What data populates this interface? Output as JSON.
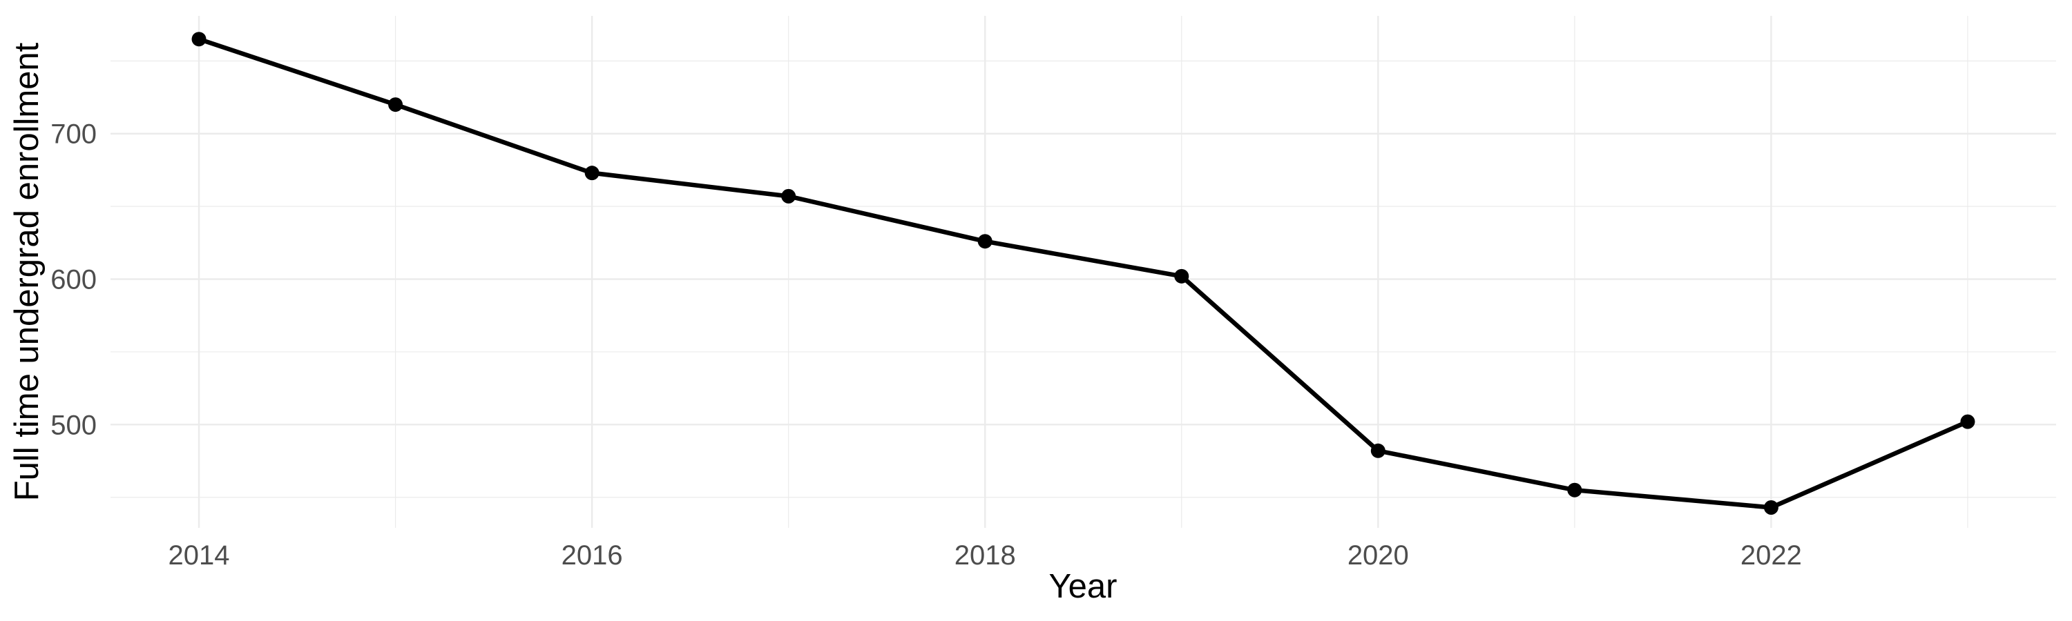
{
  "chart_data": {
    "type": "line",
    "title": "",
    "xlabel": "Year",
    "ylabel": "Full time undergrad enrollment",
    "x": [
      2014,
      2015,
      2016,
      2017,
      2018,
      2019,
      2020,
      2021,
      2022,
      2023
    ],
    "values": [
      765,
      720,
      673,
      657,
      626,
      602,
      482,
      455,
      443,
      502
    ],
    "series_name": "Full time undergrad enrollment",
    "x_major_ticks": [
      2014,
      2016,
      2018,
      2020,
      2022
    ],
    "x_tick_labels": [
      "2014",
      "2016",
      "2018",
      "2020",
      "2022"
    ],
    "x_minor_gridlines": [
      2015,
      2017,
      2019,
      2021,
      2023
    ],
    "y_major_ticks": [
      500,
      600,
      700
    ],
    "y_tick_labels": [
      "500",
      "600",
      "700"
    ],
    "y_minor_gridlines": [
      450,
      550,
      650,
      750
    ],
    "xlim": [
      2013.55,
      2023.45
    ],
    "ylim": [
      429,
      781
    ],
    "grid": "on",
    "legend": "none",
    "colors": {
      "background": "#ffffff",
      "gridline": "#ebebeb",
      "axis_text": "#4d4d4d",
      "axis_title": "#000000",
      "line": "#000000",
      "point": "#000000"
    }
  }
}
